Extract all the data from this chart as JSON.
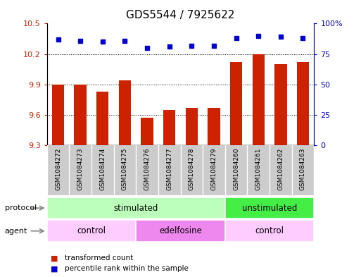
{
  "title": "GDS5544 / 7925622",
  "samples": [
    "GSM1084272",
    "GSM1084273",
    "GSM1084274",
    "GSM1084275",
    "GSM1084276",
    "GSM1084277",
    "GSM1084278",
    "GSM1084279",
    "GSM1084260",
    "GSM1084261",
    "GSM1084262",
    "GSM1084263"
  ],
  "bar_values": [
    9.9,
    9.9,
    9.83,
    9.94,
    9.57,
    9.65,
    9.67,
    9.67,
    10.12,
    10.2,
    10.1,
    10.12
  ],
  "dot_values": [
    87,
    86,
    85,
    86,
    80,
    81,
    82,
    82,
    88,
    90,
    89,
    88
  ],
  "ylim_left": [
    9.3,
    10.5
  ],
  "ylim_right": [
    0,
    100
  ],
  "yticks_left": [
    9.3,
    9.6,
    9.9,
    10.2,
    10.5
  ],
  "yticks_right": [
    0,
    25,
    50,
    75,
    100
  ],
  "bar_color": "#cc2200",
  "dot_color": "#0000cc",
  "grid_lines": [
    9.6,
    9.9,
    10.2
  ],
  "protocol_groups": [
    {
      "label": "stimulated",
      "start": 0,
      "end": 8,
      "color": "#bbffbb"
    },
    {
      "label": "unstimulated",
      "start": 8,
      "end": 12,
      "color": "#44ee44"
    }
  ],
  "agent_groups": [
    {
      "label": "control",
      "start": 0,
      "end": 4,
      "color": "#ffccff"
    },
    {
      "label": "edelfosine",
      "start": 4,
      "end": 8,
      "color": "#ee88ee"
    },
    {
      "label": "control",
      "start": 8,
      "end": 12,
      "color": "#ffccff"
    }
  ],
  "legend_bar_label": "transformed count",
  "legend_dot_label": "percentile rank within the sample",
  "protocol_label": "protocol",
  "agent_label": "agent",
  "xlabel_bg": "#cccccc",
  "fig_width": 5.13,
  "fig_height": 3.93,
  "dpi": 100
}
